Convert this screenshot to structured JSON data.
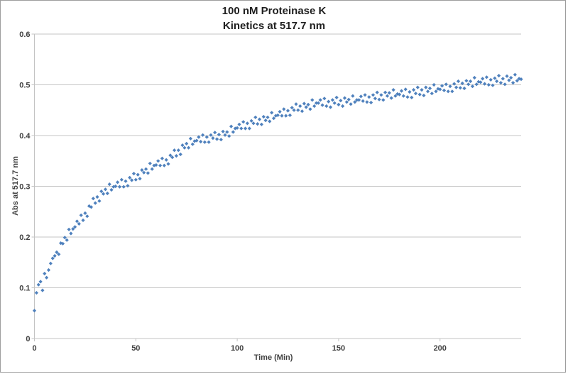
{
  "window": {
    "background": "#ffffff",
    "border_color": "#9e9e9e"
  },
  "chart_data": {
    "type": "scatter",
    "title_line1": "100 nM Proteinase K",
    "title_line2": "Kinetics at 517.7 nm",
    "xlabel": "Time (Min)",
    "ylabel": "Abs at 517.7 nm",
    "xlim": [
      0,
      240
    ],
    "ylim": [
      0,
      0.6
    ],
    "x_ticks": [
      0,
      50,
      100,
      150,
      200
    ],
    "x_tick_labels": [
      "0",
      "50",
      "100",
      "150",
      "200"
    ],
    "y_ticks": [
      0,
      0.1,
      0.2,
      0.3,
      0.4,
      0.5,
      0.6
    ],
    "y_tick_labels": [
      "0",
      "0.1",
      "0.2",
      "0.3",
      "0.4",
      "0.5",
      "0.6"
    ],
    "grid": "horizontal",
    "legend_position": "none",
    "marker": "diamond",
    "marker_color": "#4F81BD",
    "axis_color": "#c3c3c3",
    "gridline_color": "#c6c6c6",
    "label_color": "#404040",
    "x_start": 0,
    "x_step": 1,
    "values": [
      0.055,
      0.09,
      0.106,
      0.112,
      0.095,
      0.128,
      0.12,
      0.135,
      0.148,
      0.158,
      0.163,
      0.17,
      0.166,
      0.188,
      0.187,
      0.199,
      0.194,
      0.215,
      0.207,
      0.216,
      0.22,
      0.231,
      0.226,
      0.243,
      0.233,
      0.247,
      0.241,
      0.261,
      0.259,
      0.276,
      0.267,
      0.279,
      0.271,
      0.29,
      0.285,
      0.294,
      0.286,
      0.304,
      0.293,
      0.299,
      0.3,
      0.308,
      0.299,
      0.313,
      0.299,
      0.31,
      0.301,
      0.317,
      0.312,
      0.325,
      0.313,
      0.323,
      0.315,
      0.332,
      0.327,
      0.334,
      0.326,
      0.345,
      0.334,
      0.341,
      0.342,
      0.35,
      0.341,
      0.355,
      0.341,
      0.352,
      0.344,
      0.361,
      0.357,
      0.371,
      0.36,
      0.371,
      0.363,
      0.381,
      0.376,
      0.384,
      0.376,
      0.394,
      0.383,
      0.389,
      0.39,
      0.397,
      0.388,
      0.401,
      0.387,
      0.397,
      0.387,
      0.401,
      0.395,
      0.406,
      0.393,
      0.402,
      0.392,
      0.408,
      0.401,
      0.407,
      0.399,
      0.418,
      0.407,
      0.414,
      0.415,
      0.422,
      0.414,
      0.427,
      0.414,
      0.424,
      0.414,
      0.429,
      0.424,
      0.436,
      0.423,
      0.432,
      0.422,
      0.437,
      0.43,
      0.436,
      0.428,
      0.445,
      0.434,
      0.439,
      0.44,
      0.447,
      0.439,
      0.452,
      0.439,
      0.449,
      0.44,
      0.455,
      0.45,
      0.462,
      0.45,
      0.458,
      0.448,
      0.463,
      0.456,
      0.461,
      0.452,
      0.47,
      0.458,
      0.464,
      0.464,
      0.47,
      0.46,
      0.473,
      0.458,
      0.467,
      0.456,
      0.47,
      0.464,
      0.475,
      0.461,
      0.469,
      0.458,
      0.474,
      0.466,
      0.471,
      0.462,
      0.478,
      0.466,
      0.47,
      0.47,
      0.477,
      0.468,
      0.48,
      0.466,
      0.476,
      0.465,
      0.48,
      0.473,
      0.485,
      0.471,
      0.48,
      0.47,
      0.485,
      0.478,
      0.484,
      0.474,
      0.49,
      0.478,
      0.482,
      0.481,
      0.488,
      0.478,
      0.491,
      0.476,
      0.486,
      0.475,
      0.49,
      0.483,
      0.495,
      0.481,
      0.49,
      0.479,
      0.495,
      0.487,
      0.493,
      0.483,
      0.5,
      0.487,
      0.492,
      0.491,
      0.498,
      0.489,
      0.501,
      0.487,
      0.497,
      0.487,
      0.502,
      0.495,
      0.507,
      0.494,
      0.503,
      0.493,
      0.508,
      0.501,
      0.507,
      0.497,
      0.514,
      0.501,
      0.506,
      0.505,
      0.512,
      0.502,
      0.515,
      0.5,
      0.51,
      0.499,
      0.513,
      0.507,
      0.518,
      0.504,
      0.512,
      0.501,
      0.517,
      0.509,
      0.514,
      0.504,
      0.52,
      0.508,
      0.512,
      0.511
    ]
  }
}
